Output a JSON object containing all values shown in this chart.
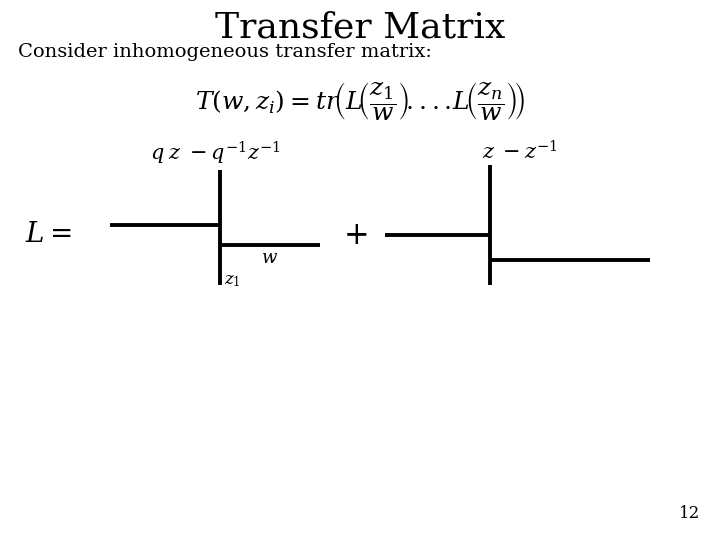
{
  "title": "Transfer Matrix",
  "subtitle": "Consider inhomogeneous transfer matrix:",
  "page_number": "12",
  "bg_color": "#ffffff",
  "text_color": "#000000",
  "title_fontsize": 26,
  "subtitle_fontsize": 14,
  "formula_fontsize": 18,
  "diagram_linewidth": 2.8,
  "lw_label": "L=",
  "plus_label": "+",
  "w_label": "w",
  "z1_label": "z_1",
  "eig1_label": "q\\;z\\;-q^{-1}z^{-1}",
  "eig2_label": "z\\;-z^{-1}"
}
